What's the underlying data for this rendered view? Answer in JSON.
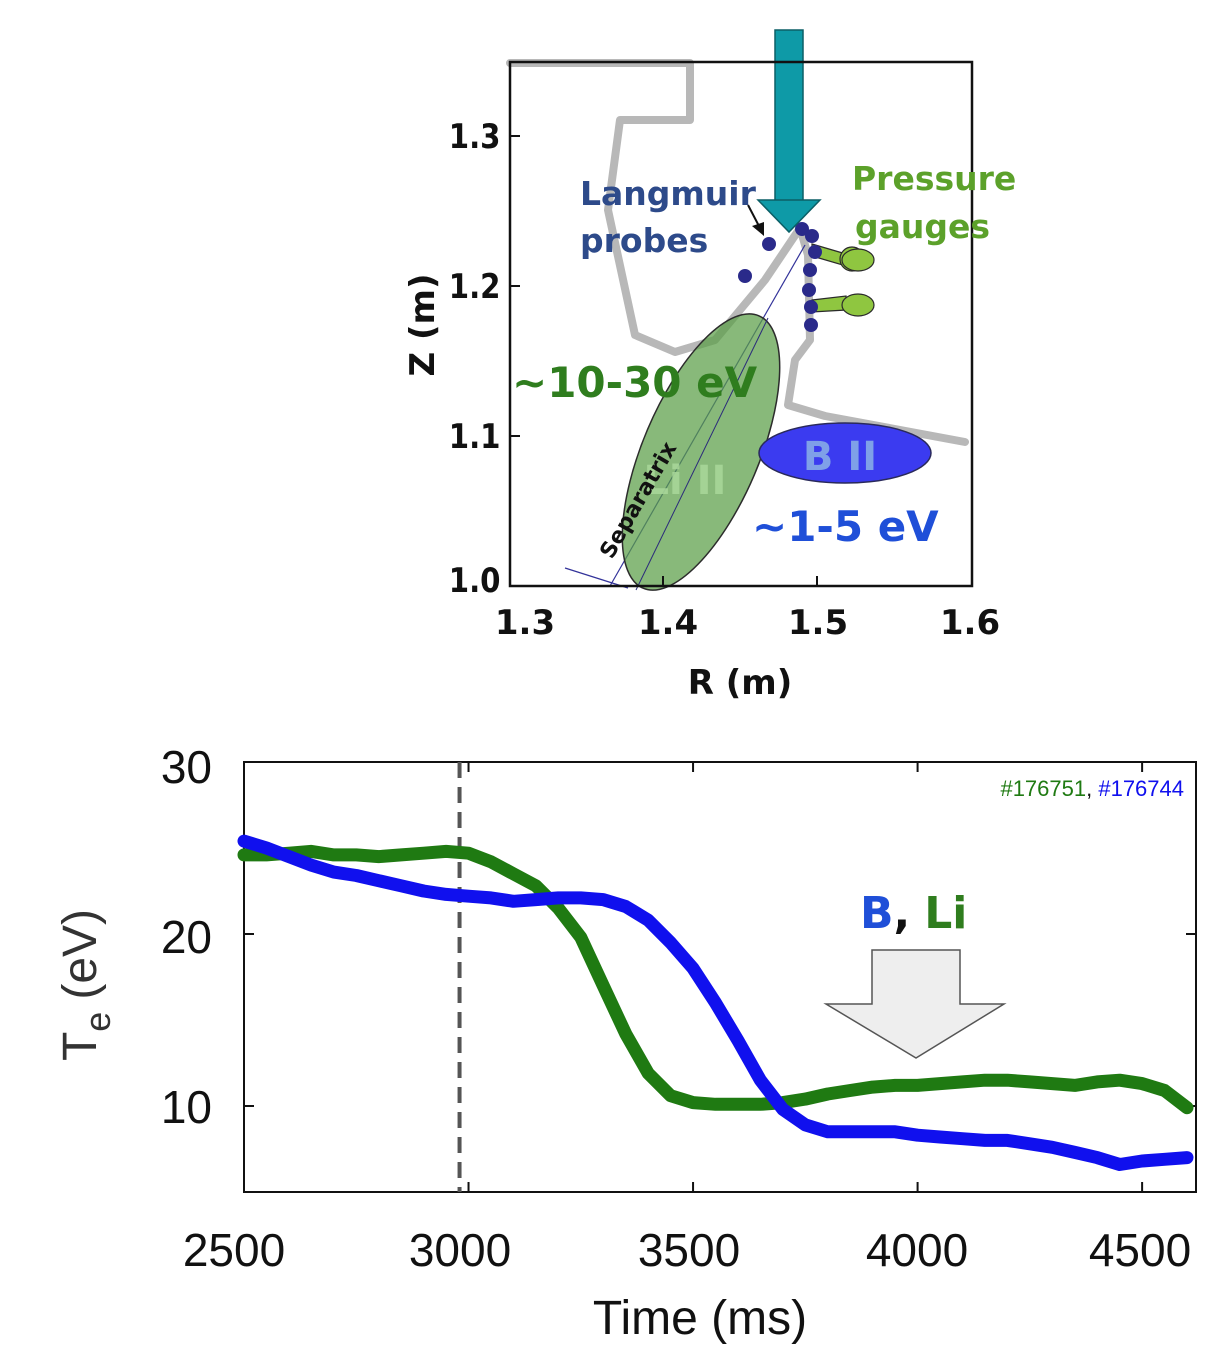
{
  "chart_data": [
    {
      "type": "diagram-plot",
      "xlabel": "R (m)",
      "ylabel": "Z (m)",
      "xlim": [
        1.3,
        1.6
      ],
      "ylim": [
        1.0,
        1.35
      ],
      "x_ticks": [
        "1.3",
        "1.4",
        "1.5",
        "1.6"
      ],
      "y_ticks": [
        "1.0",
        "1.1",
        "1.2",
        "1.3"
      ],
      "annotations": {
        "langmuir": [
          "Langmuir",
          "probes"
        ],
        "pressure": [
          "Pressure",
          "gauges"
        ],
        "li_temp": "~10-30 eV",
        "b_temp": "~1-5 eV",
        "li_region": "Li II",
        "b_region": "B II",
        "separatrix": "Separatrix"
      },
      "colors": {
        "wall": "#b8b8b8",
        "arrow": "#0e9aa7",
        "probes": "#2a2a8a",
        "gauges": "#8fc640",
        "li_region": "#5a9e46",
        "b_region": "#3b3bf0",
        "li_text": "#2f7d1e",
        "b_text": "#1f4fd8"
      }
    },
    {
      "type": "line",
      "xlabel": "Time (ms)",
      "ylabel_main": "T",
      "ylabel_sub": "e",
      "ylabel_unit": "(eV)",
      "xlim": [
        2500,
        4620
      ],
      "ylim": [
        5,
        30
      ],
      "x_ticks": [
        "2500",
        "3000",
        "3500",
        "4000",
        "4500"
      ],
      "y_ticks": [
        "10",
        "20",
        "30"
      ],
      "vline_x": 2980,
      "shots": {
        "green": "#176751",
        "sep": ", ",
        "blue": "#176744"
      },
      "legend": {
        "b": "B",
        "comma": ",",
        "li": "Li"
      },
      "series": [
        {
          "color": "#1f7a12",
          "x": [
            2500,
            2550,
            2600,
            2650,
            2700,
            2750,
            2800,
            2850,
            2900,
            2950,
            3000,
            3050,
            3100,
            3150,
            3200,
            3250,
            3300,
            3350,
            3400,
            3450,
            3500,
            3550,
            3600,
            3650,
            3700,
            3750,
            3800,
            3850,
            3900,
            3950,
            4000,
            4050,
            4100,
            4150,
            4200,
            4250,
            4300,
            4350,
            4400,
            4450,
            4500,
            4550,
            4600
          ],
          "y": [
            24.6,
            24.6,
            24.7,
            24.8,
            24.6,
            24.6,
            24.5,
            24.6,
            24.7,
            24.8,
            24.7,
            24.2,
            23.5,
            22.8,
            21.5,
            19.8,
            17.0,
            14.2,
            11.9,
            10.6,
            10.2,
            10.1,
            10.1,
            10.1,
            10.2,
            10.4,
            10.7,
            10.9,
            11.1,
            11.2,
            11.2,
            11.3,
            11.4,
            11.5,
            11.5,
            11.4,
            11.3,
            11.2,
            11.4,
            11.5,
            11.3,
            10.9,
            9.9
          ]
        },
        {
          "color": "#1010ee",
          "x": [
            2500,
            2550,
            2600,
            2650,
            2700,
            2750,
            2800,
            2850,
            2900,
            2950,
            3000,
            3050,
            3100,
            3150,
            3200,
            3250,
            3300,
            3350,
            3400,
            3450,
            3500,
            3550,
            3600,
            3650,
            3700,
            3750,
            3800,
            3850,
            3900,
            3950,
            4000,
            4050,
            4100,
            4150,
            4200,
            4250,
            4300,
            4350,
            4400,
            4450,
            4500,
            4550,
            4600
          ],
          "y": [
            25.4,
            25.0,
            24.5,
            24.0,
            23.6,
            23.4,
            23.1,
            22.8,
            22.5,
            22.3,
            22.2,
            22.1,
            21.9,
            22.0,
            22.1,
            22.1,
            22.0,
            21.6,
            20.8,
            19.5,
            18.0,
            16.0,
            13.8,
            11.5,
            9.8,
            8.9,
            8.5,
            8.5,
            8.5,
            8.5,
            8.3,
            8.2,
            8.1,
            8.0,
            8.0,
            7.8,
            7.6,
            7.3,
            7.0,
            6.6,
            6.8,
            6.9,
            7.0
          ]
        }
      ]
    }
  ]
}
